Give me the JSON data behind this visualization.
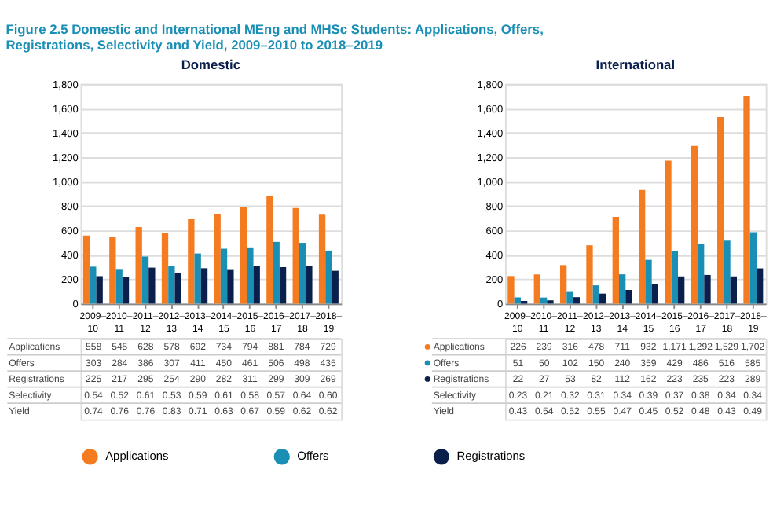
{
  "chart_data": [
    {
      "type": "bar",
      "title": "Domestic",
      "categories": [
        "2009–10",
        "2010–11",
        "2011–12",
        "2012–13",
        "2013–14",
        "2014–15",
        "2015–16",
        "2016–17",
        "2017–18",
        "2018–19"
      ],
      "ylim": [
        0,
        1800
      ],
      "yticks": [
        0,
        200,
        400,
        600,
        800,
        {
          "value": 1000,
          "label": "1,000"
        },
        {
          "value": 1200,
          "label": "1,200"
        },
        {
          "value": 1400,
          "label": "1,400"
        },
        {
          "value": 1600,
          "label": "1,600"
        },
        {
          "value": 1800,
          "label": "1,800"
        }
      ],
      "grid": "y",
      "legend": "bottom",
      "series": [
        {
          "name": "Applications",
          "color": "#f47b20",
          "values": [
            558,
            545,
            628,
            578,
            692,
            734,
            794,
            881,
            784,
            729
          ],
          "value_labels": [
            "558",
            "545",
            "628",
            "578",
            "692",
            "734",
            "794",
            "881",
            "784",
            "729"
          ]
        },
        {
          "name": "Offers",
          "color": "#1a8fb5",
          "values": [
            303,
            284,
            386,
            307,
            411,
            450,
            461,
            506,
            498,
            435
          ],
          "value_labels": [
            "303",
            "284",
            "386",
            "307",
            "411",
            "450",
            "461",
            "506",
            "498",
            "435"
          ]
        },
        {
          "name": "Registrations",
          "color": "#0b1f4d",
          "values": [
            225,
            217,
            295,
            254,
            290,
            282,
            311,
            299,
            309,
            269
          ],
          "value_labels": [
            "225",
            "217",
            "295",
            "254",
            "290",
            "282",
            "311",
            "299",
            "309",
            "269"
          ]
        }
      ],
      "annotations": [
        "Figure 2.5 Domestic and International MEng and MHSc Students: Applications, Offers, Registrations, Selectivity and Yield, 2009–2010 to 2018–2019",
        "Selectivity",
        "0.54",
        "0.52",
        "0.61",
        "0.53",
        "0.59",
        "0.61",
        "0.58",
        "0.57",
        "0.64",
        "0.60",
        "Yield",
        "0.74",
        "0.76",
        "0.76",
        "0.83",
        "0.71",
        "0.63",
        "0.67",
        "0.59",
        "0.62",
        "0.62"
      ]
    },
    {
      "type": "bar",
      "title": "International",
      "categories": [
        "2009–10",
        "2010–11",
        "2011–12",
        "2012–13",
        "2013–14",
        "2014–15",
        "2015–16",
        "2016–17",
        "2017–18",
        "2018–19"
      ],
      "ylim": [
        0,
        1800
      ],
      "yticks": [
        0,
        200,
        400,
        600,
        800,
        {
          "value": 1000,
          "label": "1,000"
        },
        {
          "value": 1200,
          "label": "1,200"
        },
        {
          "value": 1400,
          "label": "1,400"
        },
        {
          "value": 1600,
          "label": "1,600"
        },
        {
          "value": 1800,
          "label": "1,800"
        }
      ],
      "grid": "y",
      "legend": "bottom",
      "series": [
        {
          "name": "Applications",
          "color": "#f47b20",
          "values": [
            226,
            239,
            316,
            478,
            711,
            932,
            1171,
            1292,
            1529,
            1702
          ],
          "value_labels": [
            "226",
            "239",
            "316",
            "478",
            "711",
            "932",
            "1,171",
            "1,292",
            "1,529",
            "1,702"
          ]
        },
        {
          "name": "Offers",
          "color": "#1a8fb5",
          "values": [
            51,
            50,
            102,
            150,
            240,
            359,
            429,
            486,
            516,
            585
          ],
          "value_labels": [
            "51",
            "50",
            "102",
            "150",
            "240",
            "359",
            "429",
            "486",
            "516",
            "585"
          ]
        },
        {
          "name": "Registrations",
          "color": "#0b1f4d",
          "values": [
            22,
            27,
            53,
            82,
            112,
            162,
            223,
            235,
            223,
            289
          ],
          "value_labels": [
            "22",
            "27",
            "53",
            "82",
            "112",
            "162",
            "223",
            "235",
            "223",
            "289"
          ]
        }
      ],
      "annotations": [
        "Selectivity",
        "0.23",
        "0.21",
        "0.32",
        "0.31",
        "0.34",
        "0.39",
        "0.37",
        "0.38",
        "0.34",
        "0.34",
        "Yield",
        "0.43",
        "0.54",
        "0.52",
        "0.55",
        "0.47",
        "0.45",
        "0.52",
        "0.48",
        "0.43",
        "0.49"
      ]
    }
  ]
}
